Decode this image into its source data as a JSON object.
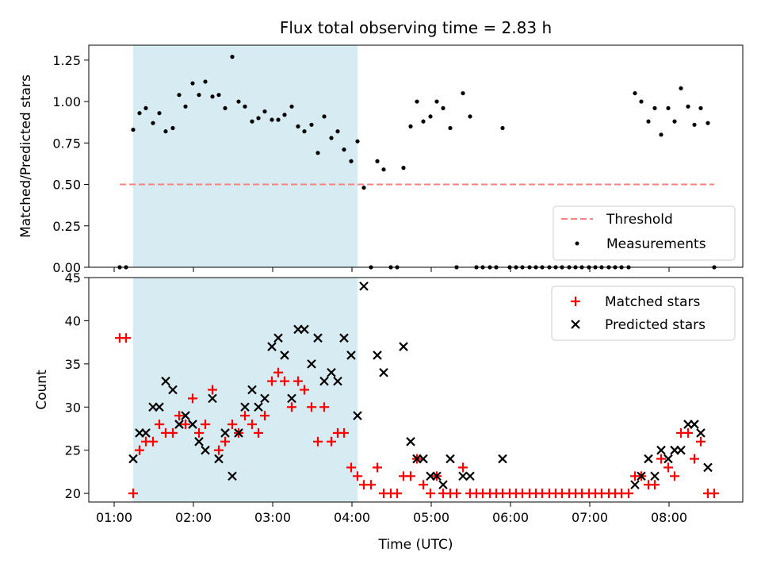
{
  "chart_data": [
    {
      "type": "scatter",
      "title": "Flux total observing time = 2.83 h",
      "xlabel": "",
      "ylabel": "Matched/Predicted stars",
      "xlim": [
        0.68,
        8.93
      ],
      "ylim": [
        0.0,
        1.34
      ],
      "x_ticks": [
        1,
        2,
        3,
        4,
        5,
        6,
        7,
        8
      ],
      "y_ticks": [
        "0.00",
        "0.25",
        "0.50",
        "0.75",
        "1.00",
        "1.25"
      ],
      "shaded_span": [
        1.24,
        4.07
      ],
      "legend_location": "lower-right",
      "legend": {
        "threshold": "Threshold",
        "measurements": "Measurements"
      },
      "threshold": {
        "name": "Threshold",
        "value": 0.5,
        "x_range": [
          1.07,
          8.57
        ],
        "color": "#ff7f7f"
      },
      "series": [
        {
          "name": "Measurements",
          "color": "#000000",
          "points": [
            [
              1.07,
              0.0
            ],
            [
              1.15,
              0.0
            ],
            [
              1.24,
              0.83
            ],
            [
              1.32,
              0.93
            ],
            [
              1.4,
              0.96
            ],
            [
              1.49,
              0.87
            ],
            [
              1.57,
              0.93
            ],
            [
              1.65,
              0.82
            ],
            [
              1.74,
              0.84
            ],
            [
              1.82,
              1.04
            ],
            [
              1.9,
              0.97
            ],
            [
              1.99,
              1.11
            ],
            [
              2.07,
              1.04
            ],
            [
              2.15,
              1.12
            ],
            [
              2.24,
              1.03
            ],
            [
              2.32,
              1.04
            ],
            [
              2.4,
              0.96
            ],
            [
              2.49,
              1.27
            ],
            [
              2.57,
              1.0
            ],
            [
              2.65,
              0.97
            ],
            [
              2.74,
              0.88
            ],
            [
              2.82,
              0.9
            ],
            [
              2.9,
              0.94
            ],
            [
              2.99,
              0.89
            ],
            [
              3.07,
              0.89
            ],
            [
              3.15,
              0.92
            ],
            [
              3.24,
              0.97
            ],
            [
              3.32,
              0.85
            ],
            [
              3.4,
              0.82
            ],
            [
              3.49,
              0.86
            ],
            [
              3.57,
              0.69
            ],
            [
              3.65,
              0.91
            ],
            [
              3.74,
              0.78
            ],
            [
              3.82,
              0.82
            ],
            [
              3.9,
              0.71
            ],
            [
              3.99,
              0.64
            ],
            [
              4.07,
              0.76
            ],
            [
              4.15,
              0.48
            ],
            [
              4.24,
              0.0
            ],
            [
              4.32,
              0.64
            ],
            [
              4.4,
              0.59
            ],
            [
              4.49,
              0.0
            ],
            [
              4.57,
              0.0
            ],
            [
              4.65,
              0.6
            ],
            [
              4.74,
              0.85
            ],
            [
              4.82,
              1.0
            ],
            [
              4.9,
              0.88
            ],
            [
              4.99,
              0.91
            ],
            [
              5.07,
              1.0
            ],
            [
              5.15,
              0.96
            ],
            [
              5.24,
              0.84
            ],
            [
              5.32,
              0.0
            ],
            [
              5.4,
              1.05
            ],
            [
              5.49,
              0.91
            ],
            [
              5.57,
              0.0
            ],
            [
              5.65,
              0.0
            ],
            [
              5.74,
              0.0
            ],
            [
              5.82,
              0.0
            ],
            [
              5.9,
              0.84
            ],
            [
              5.99,
              0.0
            ],
            [
              6.07,
              0.0
            ],
            [
              6.15,
              0.0
            ],
            [
              6.24,
              0.0
            ],
            [
              6.32,
              0.0
            ],
            [
              6.4,
              0.0
            ],
            [
              6.49,
              0.0
            ],
            [
              6.57,
              0.0
            ],
            [
              6.65,
              0.0
            ],
            [
              6.74,
              0.0
            ],
            [
              6.82,
              0.0
            ],
            [
              6.9,
              0.0
            ],
            [
              6.99,
              0.0
            ],
            [
              7.07,
              0.0
            ],
            [
              7.15,
              0.0
            ],
            [
              7.24,
              0.0
            ],
            [
              7.32,
              0.0
            ],
            [
              7.4,
              0.0
            ],
            [
              7.49,
              0.0
            ],
            [
              7.57,
              1.05
            ],
            [
              7.65,
              1.0
            ],
            [
              7.74,
              0.88
            ],
            [
              7.82,
              0.96
            ],
            [
              7.9,
              0.8
            ],
            [
              7.99,
              0.96
            ],
            [
              8.07,
              0.88
            ],
            [
              8.15,
              1.08
            ],
            [
              8.24,
              0.97
            ],
            [
              8.32,
              0.86
            ],
            [
              8.4,
              0.96
            ],
            [
              8.49,
              0.87
            ],
            [
              8.57,
              0.0
            ]
          ]
        }
      ]
    },
    {
      "type": "scatter",
      "title": "",
      "xlabel": "Time (UTC)",
      "ylabel": "Count",
      "xlim": [
        0.68,
        8.93
      ],
      "ylim": [
        19,
        45
      ],
      "x_ticks": [
        1,
        2,
        3,
        4,
        5,
        6,
        7,
        8
      ],
      "x_tick_labels": [
        "01:00",
        "02:00",
        "03:00",
        "04:00",
        "05:00",
        "06:00",
        "07:00",
        "08:00"
      ],
      "y_ticks": [
        "20",
        "25",
        "30",
        "35",
        "40",
        "45"
      ],
      "shaded_span": [
        1.24,
        4.07
      ],
      "legend_location": "upper-right",
      "legend": {
        "matched": "Matched stars",
        "predicted": "Predicted stars"
      },
      "series": [
        {
          "name": "Matched stars",
          "marker": "plus",
          "color": "#ff0000",
          "points": [
            [
              1.07,
              38
            ],
            [
              1.15,
              38
            ],
            [
              1.24,
              20
            ],
            [
              1.32,
              25
            ],
            [
              1.4,
              26
            ],
            [
              1.49,
              26
            ],
            [
              1.57,
              28
            ],
            [
              1.65,
              27
            ],
            [
              1.74,
              27
            ],
            [
              1.82,
              29
            ],
            [
              1.9,
              28
            ],
            [
              1.99,
              31
            ],
            [
              2.07,
              27
            ],
            [
              2.15,
              28
            ],
            [
              2.24,
              32
            ],
            [
              2.32,
              25
            ],
            [
              2.4,
              26
            ],
            [
              2.49,
              28
            ],
            [
              2.57,
              27
            ],
            [
              2.65,
              29
            ],
            [
              2.74,
              28
            ],
            [
              2.82,
              27
            ],
            [
              2.9,
              29
            ],
            [
              2.99,
              33
            ],
            [
              3.07,
              34
            ],
            [
              3.15,
              33
            ],
            [
              3.24,
              30
            ],
            [
              3.32,
              33
            ],
            [
              3.4,
              32
            ],
            [
              3.49,
              30
            ],
            [
              3.57,
              26
            ],
            [
              3.65,
              30
            ],
            [
              3.74,
              26
            ],
            [
              3.82,
              27
            ],
            [
              3.9,
              27
            ],
            [
              3.99,
              23
            ],
            [
              4.07,
              22
            ],
            [
              4.15,
              21
            ],
            [
              4.24,
              21
            ],
            [
              4.32,
              23
            ],
            [
              4.4,
              20
            ],
            [
              4.49,
              20
            ],
            [
              4.57,
              20
            ],
            [
              4.65,
              22
            ],
            [
              4.74,
              22
            ],
            [
              4.82,
              24
            ],
            [
              4.9,
              21
            ],
            [
              4.99,
              20
            ],
            [
              5.07,
              22
            ],
            [
              5.15,
              20
            ],
            [
              5.24,
              20
            ],
            [
              5.32,
              20
            ],
            [
              5.4,
              23
            ],
            [
              5.49,
              20
            ],
            [
              5.57,
              20
            ],
            [
              5.65,
              20
            ],
            [
              5.74,
              20
            ],
            [
              5.82,
              20
            ],
            [
              5.9,
              20
            ],
            [
              5.99,
              20
            ],
            [
              6.07,
              20
            ],
            [
              6.15,
              20
            ],
            [
              6.24,
              20
            ],
            [
              6.32,
              20
            ],
            [
              6.4,
              20
            ],
            [
              6.49,
              20
            ],
            [
              6.57,
              20
            ],
            [
              6.65,
              20
            ],
            [
              6.74,
              20
            ],
            [
              6.82,
              20
            ],
            [
              6.9,
              20
            ],
            [
              6.99,
              20
            ],
            [
              7.07,
              20
            ],
            [
              7.15,
              20
            ],
            [
              7.24,
              20
            ],
            [
              7.32,
              20
            ],
            [
              7.4,
              20
            ],
            [
              7.49,
              20
            ],
            [
              7.57,
              22
            ],
            [
              7.65,
              22
            ],
            [
              7.74,
              21
            ],
            [
              7.82,
              21
            ],
            [
              7.9,
              24
            ],
            [
              7.99,
              23
            ],
            [
              8.07,
              22
            ],
            [
              8.15,
              27
            ],
            [
              8.24,
              27
            ],
            [
              8.32,
              24
            ],
            [
              8.4,
              26
            ],
            [
              8.49,
              20
            ],
            [
              8.57,
              20
            ]
          ]
        },
        {
          "name": "Predicted stars",
          "marker": "x",
          "color": "#000000",
          "points": [
            [
              1.24,
              24
            ],
            [
              1.32,
              27
            ],
            [
              1.4,
              27
            ],
            [
              1.49,
              30
            ],
            [
              1.57,
              30
            ],
            [
              1.65,
              33
            ],
            [
              1.74,
              32
            ],
            [
              1.82,
              28
            ],
            [
              1.9,
              29
            ],
            [
              1.99,
              28
            ],
            [
              2.07,
              26
            ],
            [
              2.15,
              25
            ],
            [
              2.24,
              31
            ],
            [
              2.32,
              24
            ],
            [
              2.4,
              27
            ],
            [
              2.49,
              22
            ],
            [
              2.57,
              27
            ],
            [
              2.65,
              30
            ],
            [
              2.74,
              32
            ],
            [
              2.82,
              30
            ],
            [
              2.9,
              31
            ],
            [
              2.99,
              37
            ],
            [
              3.07,
              38
            ],
            [
              3.15,
              36
            ],
            [
              3.24,
              31
            ],
            [
              3.32,
              39
            ],
            [
              3.4,
              39
            ],
            [
              3.49,
              35
            ],
            [
              3.57,
              38
            ],
            [
              3.65,
              33
            ],
            [
              3.74,
              34
            ],
            [
              3.82,
              33
            ],
            [
              3.9,
              38
            ],
            [
              3.99,
              36
            ],
            [
              4.07,
              29
            ],
            [
              4.15,
              44
            ],
            [
              4.32,
              36
            ],
            [
              4.4,
              34
            ],
            [
              4.65,
              37
            ],
            [
              4.74,
              26
            ],
            [
              4.82,
              24
            ],
            [
              4.9,
              24
            ],
            [
              4.99,
              22
            ],
            [
              5.07,
              22
            ],
            [
              5.15,
              21
            ],
            [
              5.24,
              24
            ],
            [
              5.4,
              22
            ],
            [
              5.49,
              22
            ],
            [
              5.9,
              24
            ],
            [
              7.57,
              21
            ],
            [
              7.65,
              22
            ],
            [
              7.74,
              24
            ],
            [
              7.82,
              22
            ],
            [
              7.9,
              25
            ],
            [
              7.99,
              24
            ],
            [
              8.07,
              25
            ],
            [
              8.15,
              25
            ],
            [
              8.24,
              28
            ],
            [
              8.32,
              28
            ],
            [
              8.4,
              27
            ],
            [
              8.49,
              23
            ]
          ]
        }
      ]
    }
  ]
}
